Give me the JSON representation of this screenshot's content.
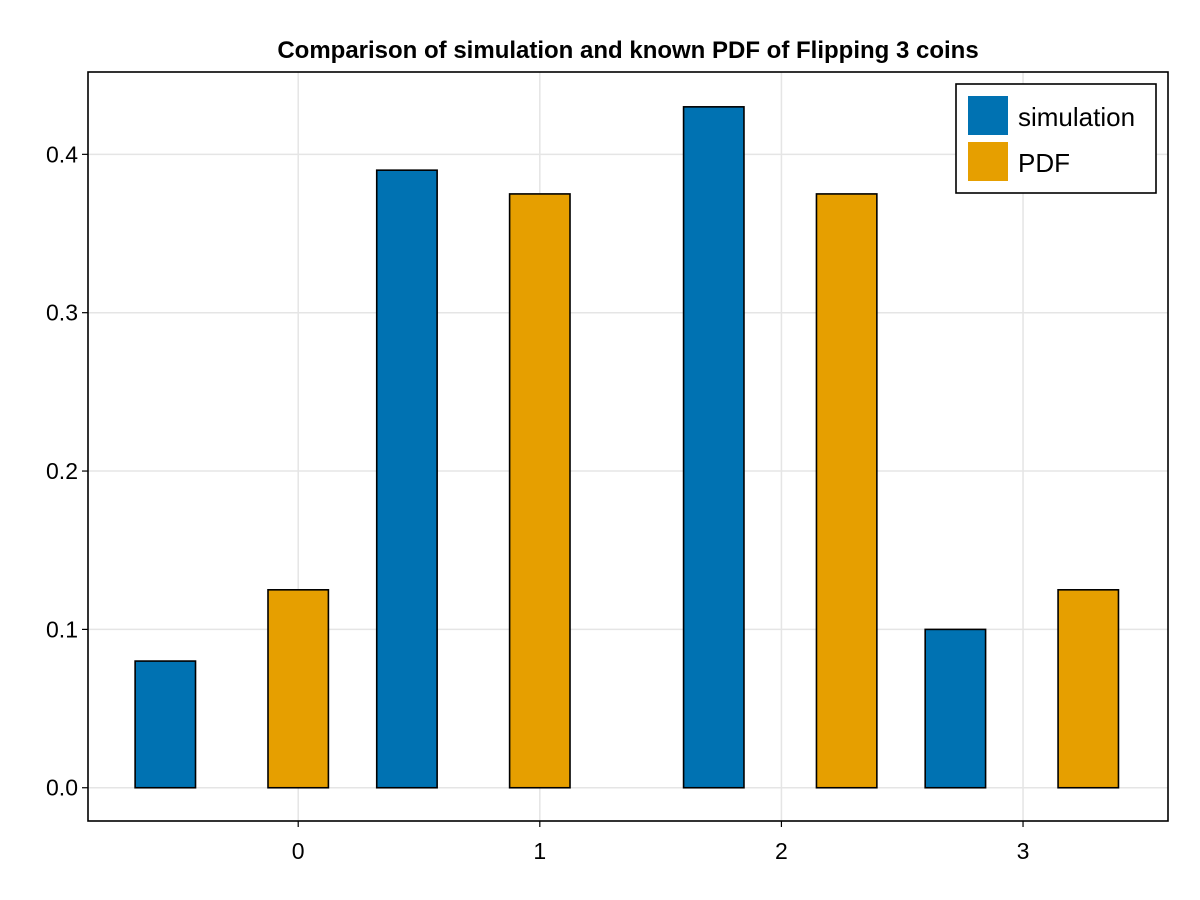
{
  "chart_data": {
    "type": "bar",
    "title": "Comparison of simulation and known PDF of Flipping 3 coins",
    "xlabel": "",
    "ylabel": "",
    "xlim": [
      -0.87,
      3.6
    ],
    "ylim": [
      -0.021,
      0.452
    ],
    "xticks": [
      0,
      1,
      2,
      3
    ],
    "xtick_labels": [
      "0",
      "1",
      "2",
      "3"
    ],
    "yticks": [
      0.0,
      0.1,
      0.2,
      0.3,
      0.4
    ],
    "ytick_labels": [
      "0.0",
      "0.1",
      "0.2",
      "0.3",
      "0.4"
    ],
    "grid": true,
    "legend_position": "top-right",
    "series": [
      {
        "name": "simulation",
        "color": "#0072b2",
        "bar_width": 0.25,
        "x": [
          -0.55,
          0.45,
          1.72,
          2.72
        ],
        "values": [
          0.08,
          0.39,
          0.43,
          0.1
        ]
      },
      {
        "name": "PDF",
        "color": "#e69f00",
        "bar_width": 0.25,
        "x": [
          0.0,
          1.0,
          2.27,
          3.27
        ],
        "values": [
          0.125,
          0.375,
          0.375,
          0.125
        ]
      }
    ]
  }
}
